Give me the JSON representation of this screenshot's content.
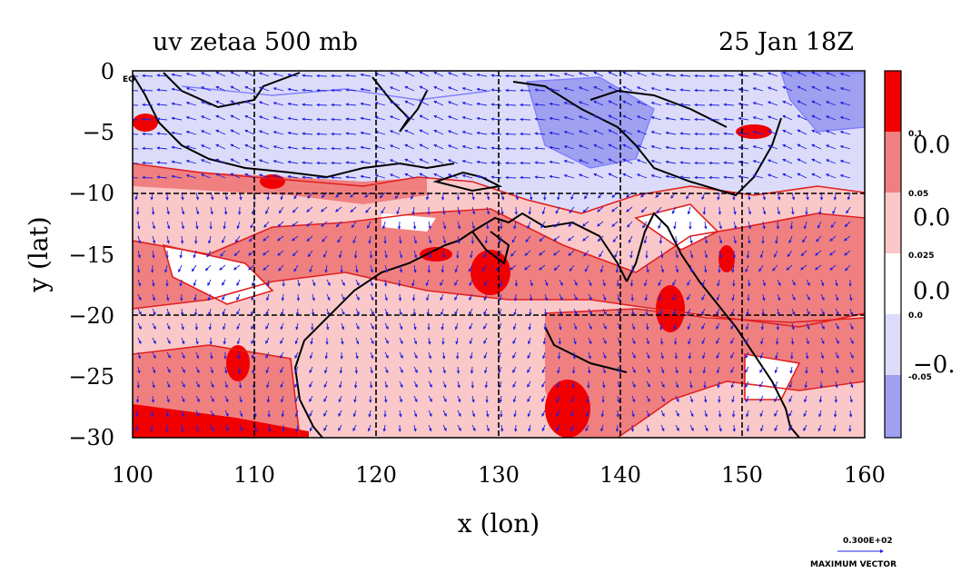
{
  "chart_data": {
    "type": "heatmap",
    "title_left": "uv zetaa 500 mb",
    "title_right": "25 Jan 18Z",
    "xlabel": "x (lon)",
    "ylabel": "y (lat)",
    "xlim": [
      100,
      160
    ],
    "ylim": [
      -30,
      0
    ],
    "x_ticks": [
      "100",
      "110",
      "120",
      "130",
      "140",
      "150",
      "160"
    ],
    "y_ticks": [
      "0",
      "−5",
      "−10",
      "−15",
      "−20",
      "−25",
      "−30"
    ],
    "grid": true,
    "colorbar": {
      "levels": [
        "0.1",
        "0.05",
        "0.025",
        "0.0",
        "-0.05"
      ],
      "side_labels": [
        "0.0",
        "0.0",
        "0.0",
        "−0."
      ],
      "colors": [
        "#f00000",
        "#f08080",
        "#fac8c8",
        "#ffffff",
        "#dcdcfa",
        "#a0a0f0"
      ]
    },
    "vector_key": {
      "value": "0.300E+02",
      "label": "MAXIMUM VECTOR"
    },
    "vector_color": "#2020e0",
    "contour_color": "#e02020",
    "coast_color": "#000000",
    "corner_label": "EQ"
  }
}
